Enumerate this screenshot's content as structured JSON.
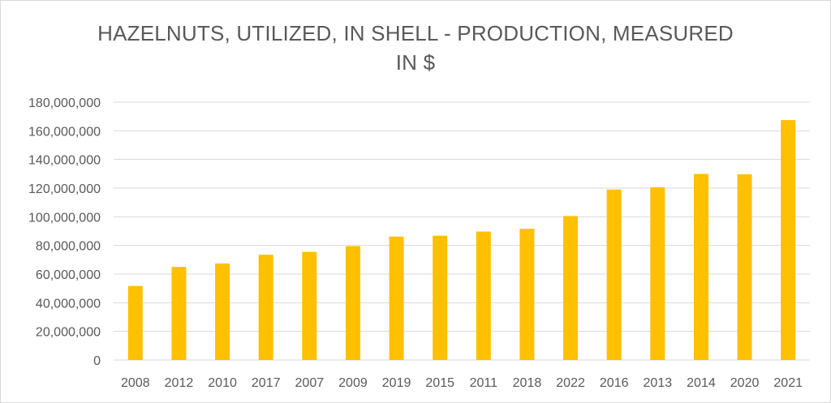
{
  "chart_data": {
    "type": "bar",
    "title_lines": [
      "HAZELNUTS, UTILIZED, IN SHELL - PRODUCTION, MEASURED",
      "IN $"
    ],
    "categories": [
      "2008",
      "2012",
      "2010",
      "2017",
      "2007",
      "2009",
      "2019",
      "2015",
      "2011",
      "2018",
      "2022",
      "2016",
      "2013",
      "2014",
      "2020",
      "2021"
    ],
    "values": [
      51700000,
      65000000,
      67400000,
      73500000,
      75500000,
      79500000,
      86200000,
      86800000,
      89700000,
      91600000,
      100500000,
      119000000,
      120600000,
      129900000,
      129600000,
      167500000
    ],
    "y_ticks": [
      "0",
      "20,000,000",
      "40,000,000",
      "60,000,000",
      "80,000,000",
      "100,000,000",
      "120,000,000",
      "140,000,000",
      "160,000,000",
      "180,000,000"
    ],
    "ylim": [
      0,
      180000000
    ],
    "xlabel": "",
    "ylabel": "",
    "grid": true,
    "legend": "none",
    "bar_color": "#FFC000",
    "grid_color": "#d9d9d9",
    "text_color": "#595959"
  }
}
